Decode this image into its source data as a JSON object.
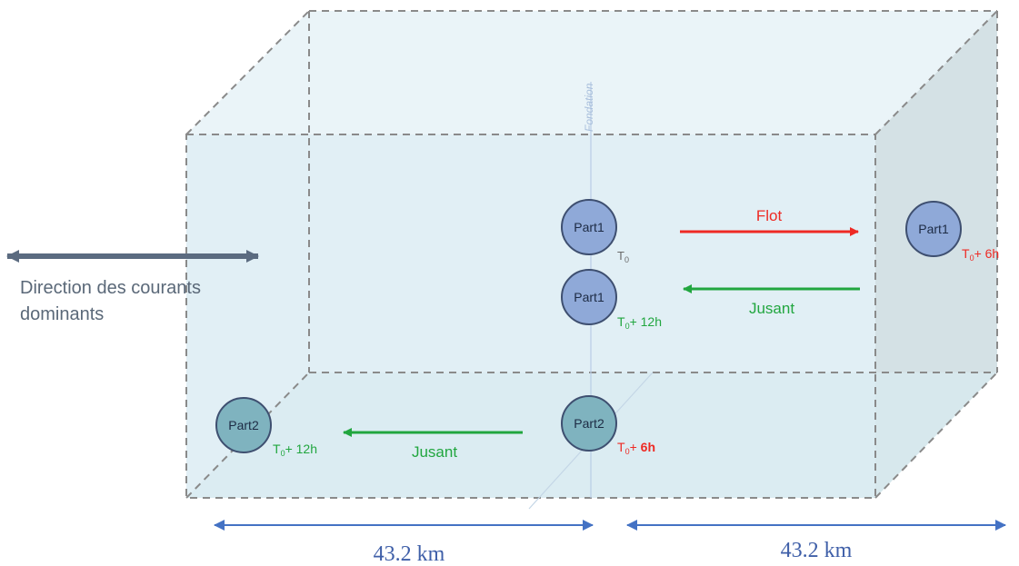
{
  "legend": {
    "direction_line1": "Direction des courants",
    "direction_line2": "dominants"
  },
  "vertical_label": "Fondation",
  "particles": {
    "p1_t0": {
      "name": "Part1",
      "time": "T0"
    },
    "p1_t12": {
      "name": "Part1",
      "time": "T0+ 12h"
    },
    "p1_t6": {
      "name": "Part1",
      "time": "T0+ 6h"
    },
    "p2_t6": {
      "name": "Part2",
      "time": "T0+ 6h"
    },
    "p2_t12": {
      "name": "Part2",
      "time": "T0+ 12h"
    }
  },
  "tide": {
    "flot": "Flot",
    "jusant_upper": "Jusant",
    "jusant_lower": "Jusant"
  },
  "dimensions": {
    "left": "43.2 km",
    "right": "43.2 km"
  },
  "colors": {
    "flot_red": "#ee2a24",
    "jusant_green": "#21a63f",
    "box_fill": "#e4f1f6",
    "part1_fill": "#8fa9d8",
    "part2_fill": "#7fb3bf",
    "dimension_blue": "#4472c4"
  }
}
